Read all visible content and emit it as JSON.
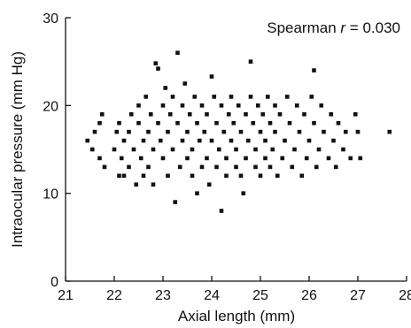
{
  "chart_data": {
    "type": "scatter",
    "title": "",
    "xlabel": "Axial length (mm)",
    "ylabel": "Intraocular pressure (mm Hg)",
    "xlim": [
      21,
      28
    ],
    "ylim": [
      0,
      30
    ],
    "xticks": [
      21,
      22,
      23,
      24,
      25,
      26,
      27,
      28
    ],
    "yticks": [
      0,
      10,
      20,
      30
    ],
    "grid": false,
    "annotation": {
      "prefix": "Spearman ",
      "variable": "r",
      "suffix": " = 0.030"
    },
    "series": [
      {
        "color": "#111111",
        "points": [
          [
            21.45,
            16
          ],
          [
            21.55,
            15
          ],
          [
            21.6,
            17
          ],
          [
            21.7,
            14
          ],
          [
            21.7,
            18
          ],
          [
            21.75,
            19
          ],
          [
            21.8,
            13
          ],
          [
            22.0,
            15
          ],
          [
            22.05,
            17
          ],
          [
            22.1,
            12
          ],
          [
            22.1,
            18
          ],
          [
            22.15,
            14
          ],
          [
            22.2,
            16
          ],
          [
            22.2,
            12
          ],
          [
            22.3,
            13
          ],
          [
            22.3,
            17
          ],
          [
            22.35,
            19
          ],
          [
            22.4,
            15
          ],
          [
            22.45,
            11
          ],
          [
            22.5,
            18
          ],
          [
            22.5,
            20
          ],
          [
            22.55,
            14
          ],
          [
            22.6,
            16
          ],
          [
            22.6,
            12
          ],
          [
            22.65,
            21
          ],
          [
            22.7,
            17
          ],
          [
            22.7,
            13
          ],
          [
            22.75,
            19
          ],
          [
            22.8,
            15
          ],
          [
            22.8,
            11
          ],
          [
            22.85,
            24.8
          ],
          [
            22.9,
            24.2
          ],
          [
            22.9,
            18
          ],
          [
            22.95,
            16
          ],
          [
            23.0,
            20
          ],
          [
            23.0,
            14
          ],
          [
            23.05,
            22
          ],
          [
            23.1,
            17
          ],
          [
            23.1,
            12
          ],
          [
            23.15,
            19
          ],
          [
            23.2,
            15
          ],
          [
            23.2,
            21
          ],
          [
            23.25,
            9
          ],
          [
            23.3,
            26
          ],
          [
            23.3,
            18
          ],
          [
            23.35,
            13
          ],
          [
            23.4,
            16
          ],
          [
            23.4,
            20
          ],
          [
            23.45,
            22.5
          ],
          [
            23.5,
            14
          ],
          [
            23.5,
            17
          ],
          [
            23.55,
            19
          ],
          [
            23.6,
            12
          ],
          [
            23.6,
            15
          ],
          [
            23.65,
            21
          ],
          [
            23.7,
            10
          ],
          [
            23.7,
            18
          ],
          [
            23.75,
            16
          ],
          [
            23.8,
            13
          ],
          [
            23.8,
            20
          ],
          [
            23.85,
            17
          ],
          [
            23.9,
            14
          ],
          [
            23.9,
            19
          ],
          [
            23.95,
            11
          ],
          [
            24.0,
            23.3
          ],
          [
            24.0,
            16
          ],
          [
            24.05,
            21
          ],
          [
            24.1,
            13
          ],
          [
            24.1,
            18
          ],
          [
            24.15,
            15
          ],
          [
            24.2,
            8
          ],
          [
            24.2,
            20
          ],
          [
            24.25,
            17
          ],
          [
            24.3,
            12
          ],
          [
            24.3,
            14
          ],
          [
            24.35,
            19
          ],
          [
            24.4,
            16
          ],
          [
            24.4,
            21
          ],
          [
            24.45,
            18
          ],
          [
            24.5,
            13
          ],
          [
            24.5,
            15
          ],
          [
            24.55,
            20
          ],
          [
            24.6,
            17
          ],
          [
            24.6,
            12
          ],
          [
            24.65,
            10
          ],
          [
            24.7,
            19
          ],
          [
            24.7,
            14
          ],
          [
            24.75,
            16
          ],
          [
            24.8,
            25
          ],
          [
            24.8,
            21
          ],
          [
            24.85,
            18
          ],
          [
            24.9,
            13
          ],
          [
            24.9,
            15
          ],
          [
            24.95,
            20
          ],
          [
            25.0,
            17
          ],
          [
            25.0,
            12
          ],
          [
            25.05,
            19
          ],
          [
            25.1,
            14
          ],
          [
            25.1,
            16
          ],
          [
            25.15,
            21
          ],
          [
            25.2,
            18
          ],
          [
            25.2,
            13
          ],
          [
            25.25,
            15
          ],
          [
            25.3,
            20
          ],
          [
            25.3,
            17
          ],
          [
            25.35,
            12
          ],
          [
            25.4,
            19
          ],
          [
            25.45,
            14
          ],
          [
            25.5,
            16
          ],
          [
            25.55,
            21
          ],
          [
            25.6,
            18
          ],
          [
            25.65,
            13
          ],
          [
            25.7,
            15
          ],
          [
            25.75,
            20
          ],
          [
            25.8,
            17
          ],
          [
            25.85,
            12
          ],
          [
            25.9,
            19
          ],
          [
            25.95,
            14
          ],
          [
            26.0,
            16
          ],
          [
            26.05,
            21
          ],
          [
            26.1,
            24
          ],
          [
            26.1,
            18
          ],
          [
            26.15,
            13
          ],
          [
            26.2,
            15
          ],
          [
            26.25,
            20
          ],
          [
            26.3,
            17
          ],
          [
            26.4,
            14
          ],
          [
            26.45,
            19
          ],
          [
            26.5,
            16
          ],
          [
            26.55,
            13
          ],
          [
            26.6,
            18
          ],
          [
            26.7,
            15
          ],
          [
            26.75,
            17
          ],
          [
            26.85,
            14
          ],
          [
            26.95,
            19
          ],
          [
            27.0,
            17
          ],
          [
            27.05,
            14
          ],
          [
            27.65,
            17
          ]
        ]
      }
    ]
  }
}
